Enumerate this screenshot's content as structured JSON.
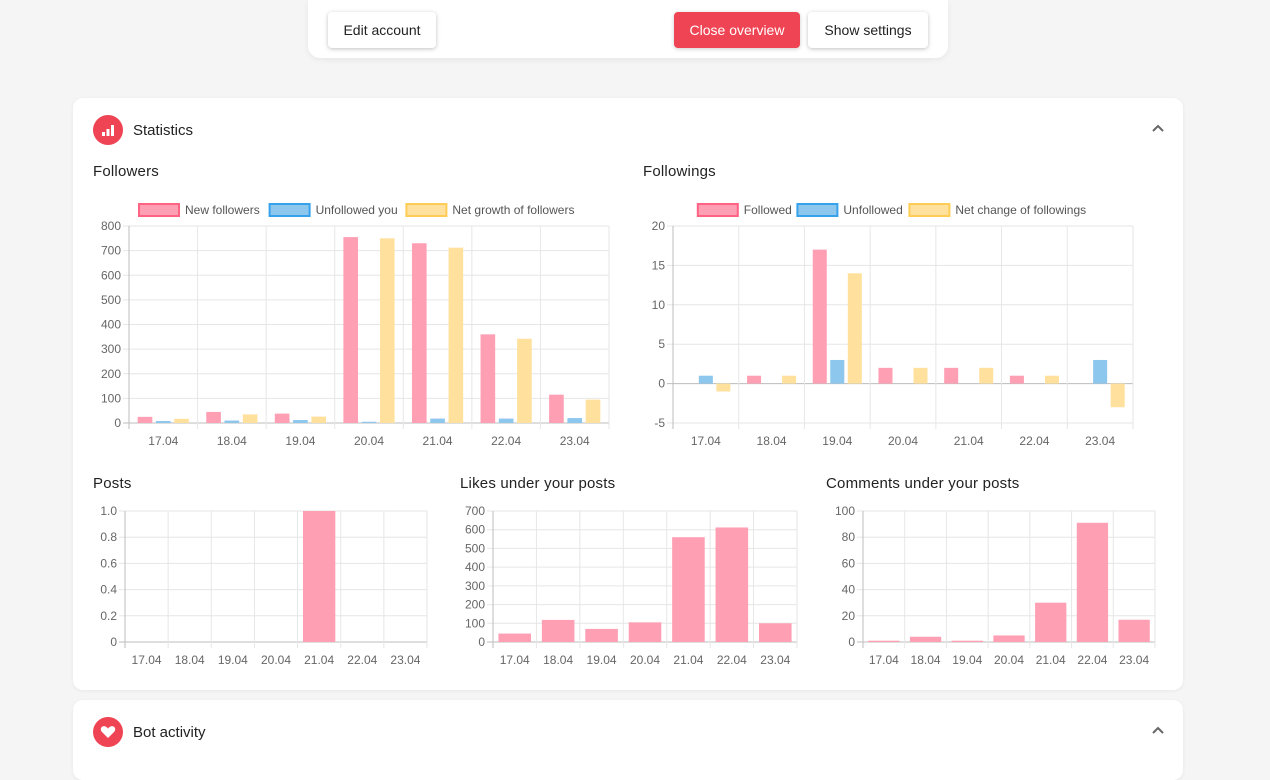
{
  "toolbar": {
    "edit_account": "Edit account",
    "close_overview": "Close overview",
    "show_settings": "Show settings"
  },
  "statistics": {
    "title": "Statistics"
  },
  "bot_activity": {
    "title": "Bot activity"
  },
  "colors": {
    "accent": "#ee4454",
    "pink": "#ff9fb4",
    "blue": "#8dc7ee",
    "yellow": "#ffe19d",
    "pink_border": "#ff6384",
    "blue_border": "#36a2eb",
    "yellow_border": "#ffcd56"
  },
  "chart_data": [
    {
      "id": "followers",
      "type": "bar",
      "title": "Followers",
      "categories": [
        "17.04",
        "18.04",
        "19.04",
        "20.04",
        "21.04",
        "22.04",
        "23.04"
      ],
      "series": [
        {
          "name": "New followers",
          "color": "pink",
          "values": [
            25,
            45,
            38,
            755,
            730,
            360,
            115
          ]
        },
        {
          "name": "Unfollowed you",
          "color": "blue",
          "values": [
            8,
            10,
            12,
            5,
            18,
            18,
            20
          ]
        },
        {
          "name": "Net growth of followers",
          "color": "yellow",
          "values": [
            17,
            35,
            26,
            750,
            712,
            342,
            95
          ]
        }
      ],
      "ylim": [
        0,
        800
      ],
      "yticks": [
        0,
        100,
        200,
        300,
        400,
        500,
        600,
        700,
        800
      ],
      "legend": "top",
      "grid": true
    },
    {
      "id": "followings",
      "type": "bar",
      "title": "Followings",
      "categories": [
        "17.04",
        "18.04",
        "19.04",
        "20.04",
        "21.04",
        "22.04",
        "23.04"
      ],
      "series": [
        {
          "name": "Followed",
          "color": "pink",
          "values": [
            0,
            1,
            17,
            2,
            2,
            1,
            0
          ]
        },
        {
          "name": "Unfollowed",
          "color": "blue",
          "values": [
            1,
            0,
            3,
            0,
            0,
            0,
            3
          ]
        },
        {
          "name": "Net change of followings",
          "color": "yellow",
          "values": [
            -1,
            1,
            14,
            2,
            2,
            1,
            -3
          ]
        }
      ],
      "ylim": [
        -5,
        20
      ],
      "yticks": [
        -5,
        0,
        5,
        10,
        15,
        20
      ],
      "legend": "top",
      "grid": true
    },
    {
      "id": "posts",
      "type": "bar",
      "title": "Posts",
      "categories": [
        "17.04",
        "18.04",
        "19.04",
        "20.04",
        "21.04",
        "22.04",
        "23.04"
      ],
      "series": [
        {
          "color": "pink",
          "values": [
            0,
            0,
            0,
            0,
            1,
            0,
            0
          ]
        }
      ],
      "ylim": [
        0,
        1
      ],
      "yticks": [
        0,
        0.2,
        0.4,
        0.6,
        0.8,
        1.0
      ],
      "ytick_labels": [
        "0",
        "0.2",
        "0.4",
        "0.6",
        "0.8",
        "1.0"
      ],
      "grid": true
    },
    {
      "id": "likes",
      "type": "bar",
      "title": "Likes under your posts",
      "categories": [
        "17.04",
        "18.04",
        "19.04",
        "20.04",
        "21.04",
        "22.04",
        "23.04"
      ],
      "series": [
        {
          "color": "pink",
          "values": [
            45,
            118,
            70,
            105,
            560,
            612,
            100
          ]
        }
      ],
      "ylim": [
        0,
        700
      ],
      "yticks": [
        0,
        100,
        200,
        300,
        400,
        500,
        600,
        700
      ],
      "grid": true
    },
    {
      "id": "comments",
      "type": "bar",
      "title": "Comments under your posts",
      "categories": [
        "17.04",
        "18.04",
        "19.04",
        "20.04",
        "21.04",
        "22.04",
        "23.04"
      ],
      "series": [
        {
          "color": "pink",
          "values": [
            1,
            4,
            1,
            5,
            30,
            91,
            17
          ]
        }
      ],
      "ylim": [
        0,
        100
      ],
      "yticks": [
        0,
        20,
        40,
        60,
        80,
        100
      ],
      "grid": true
    }
  ]
}
